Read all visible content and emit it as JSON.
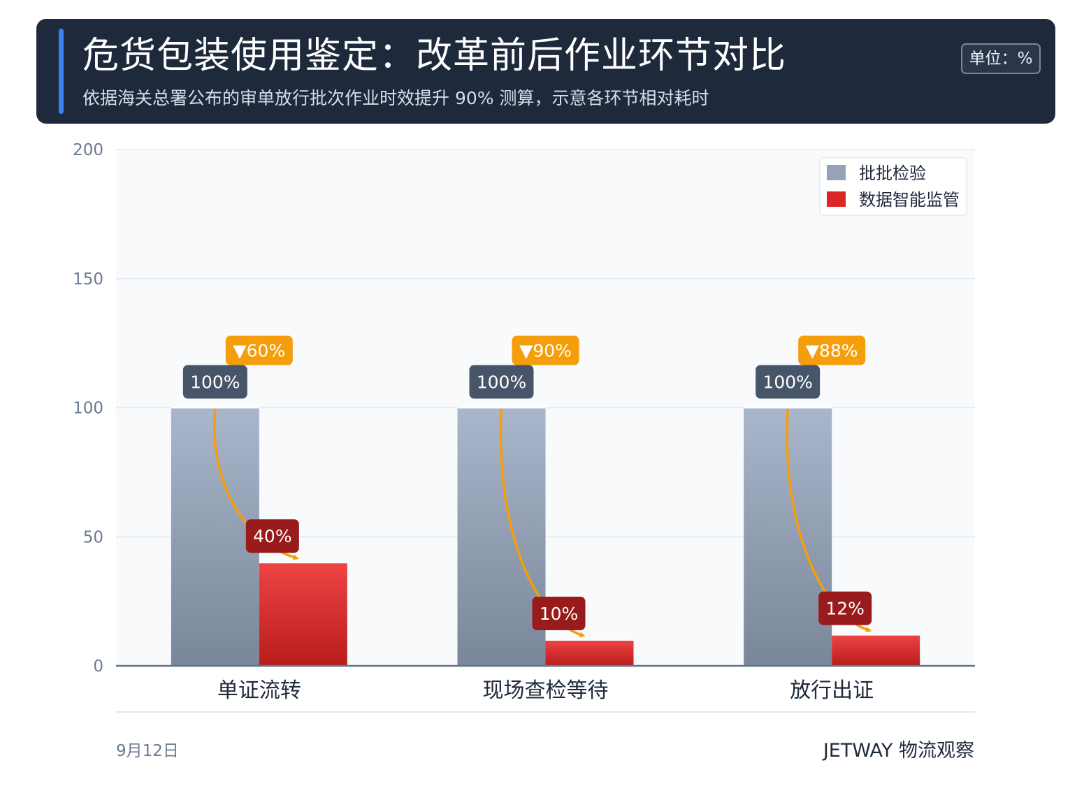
{
  "header": {
    "title": "危货包装使用鉴定：改革前后作业环节对比",
    "subtitle": "依据海关总署公布的审单放行批次作业时效提升 90% 测算，示意各环节相对耗时",
    "unit_label": "单位：%"
  },
  "chart_data": {
    "type": "bar",
    "title": "危货包装使用鉴定：改革前后作业环节对比",
    "ylabel": "",
    "xlabel": "",
    "categories": [
      "单证流转",
      "现场查检等待",
      "放行出证"
    ],
    "series": [
      {
        "name": "批批检验",
        "values": [
          100,
          100,
          100
        ]
      },
      {
        "name": "数据智能监管",
        "values": [
          40,
          10,
          12
        ]
      }
    ],
    "value_labels": [
      [
        "100%",
        "100%",
        "100%"
      ],
      [
        "40%",
        "10%",
        "12%"
      ]
    ],
    "change_labels": [
      "▼60%",
      "▼90%",
      "▼88%"
    ],
    "ylim": [
      0,
      200
    ],
    "yticks": [
      0,
      50,
      100,
      150,
      200
    ],
    "grid": true,
    "legend_position": "top-right",
    "colors": {
      "series1": "#94a3b8",
      "series2": "#dc2626",
      "series1_label_bg": "#475569",
      "series2_label_bg": "#991b1b",
      "change_label_bg": "#f59e0b",
      "arrow": "#f59e0b"
    }
  },
  "footer": {
    "date": "9月12日",
    "source": "JETWAY 物流观察"
  }
}
